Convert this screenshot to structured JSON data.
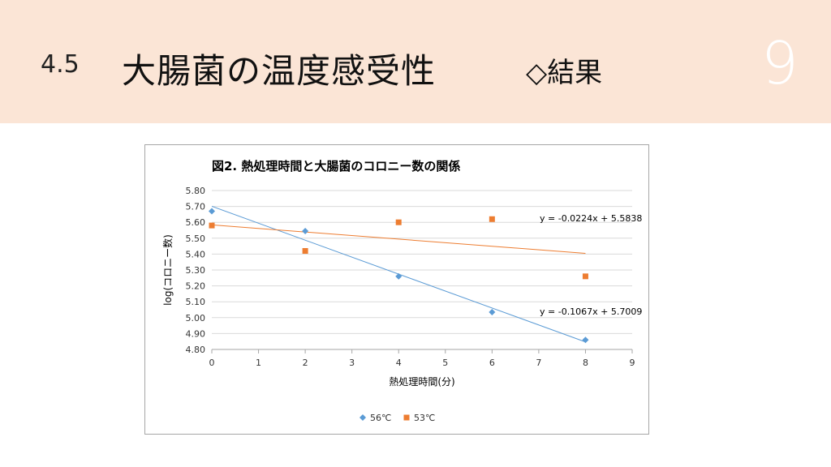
{
  "slide": {
    "section": "4.5",
    "title": "大腸菌の温度感受性",
    "subtitle": "◇結果",
    "page_number": "9",
    "header_bg": "#fbe5d6"
  },
  "chart_data": {
    "type": "scatter",
    "title": "図2.  熱処理時間と大腸菌のコロニー数の関係",
    "xlabel": "熱処理時間(分)",
    "ylabel": "log(コロニー数)",
    "xlim": [
      0,
      9
    ],
    "ylim": [
      4.8,
      5.8
    ],
    "x_ticks": [
      "0",
      "1",
      "2",
      "3",
      "4",
      "5",
      "6",
      "7",
      "8",
      "9"
    ],
    "y_ticks": [
      "4.80",
      "4.90",
      "5.00",
      "5.10",
      "5.20",
      "5.30",
      "5.40",
      "5.50",
      "5.60",
      "5.70",
      "5.80"
    ],
    "grid": true,
    "legend_position": "bottom",
    "series": [
      {
        "name": "56℃",
        "marker": "diamond",
        "color": "#5b9bd5",
        "x": [
          0,
          2,
          4,
          6,
          8
        ],
        "y": [
          5.67,
          5.545,
          5.26,
          5.035,
          4.86
        ],
        "trendline": {
          "slope": -0.1067,
          "intercept": 5.7009,
          "label": "y = -0.1067x + 5.7009"
        }
      },
      {
        "name": "53℃",
        "marker": "square",
        "color": "#ed7d31",
        "x": [
          0,
          2,
          4,
          6,
          8
        ],
        "y": [
          5.58,
          5.42,
          5.6,
          5.62,
          5.26
        ],
        "trendline": {
          "slope": -0.0224,
          "intercept": 5.5838,
          "label": "y = -0.0224x + 5.5838"
        }
      }
    ]
  }
}
